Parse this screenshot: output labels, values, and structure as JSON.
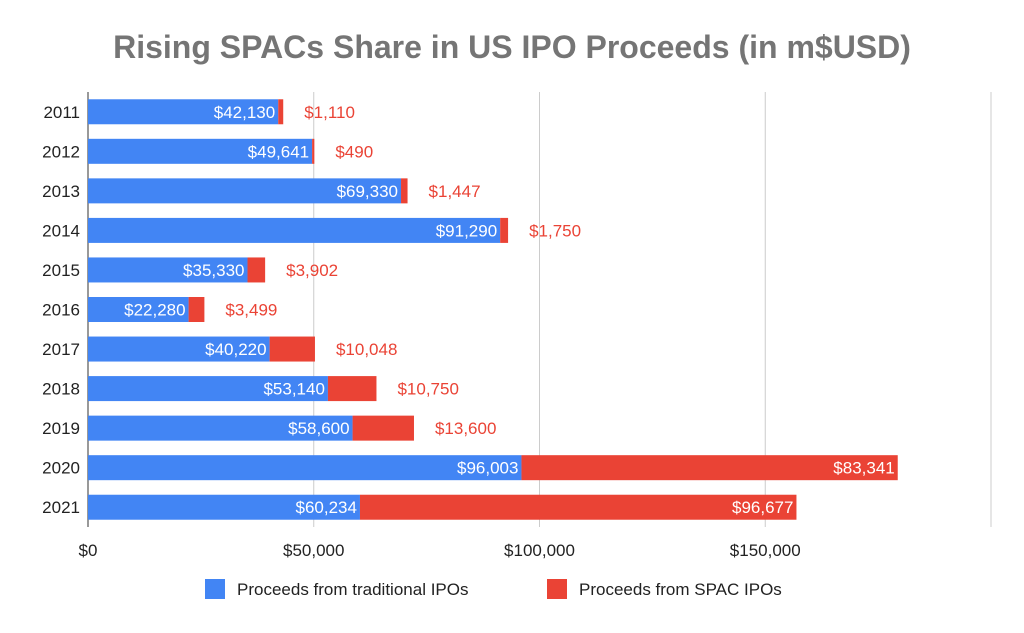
{
  "chart_data": {
    "type": "bar",
    "orientation": "horizontal",
    "stacked": true,
    "title": "Rising SPACs Share in US IPO Proceeds (in m$USD)",
    "categories": [
      "2011",
      "2012",
      "2013",
      "2014",
      "2015",
      "2016",
      "2017",
      "2018",
      "2019",
      "2020",
      "2021"
    ],
    "series": [
      {
        "name": "Proceeds from traditional IPOs",
        "color": "#4285F4",
        "values": [
          42130,
          49641,
          69330,
          91290,
          35330,
          22280,
          40220,
          53140,
          58600,
          96003,
          60234
        ],
        "labels": [
          "$42,130",
          "$49,641",
          "$69,330",
          "$91,290",
          "$35,330",
          "$22,280",
          "$40,220",
          "$53,140",
          "$58,600",
          "$96,003",
          "$60,234"
        ]
      },
      {
        "name": "Proceeds from SPAC IPOs",
        "color": "#EA4335",
        "values": [
          1110,
          490,
          1447,
          1750,
          3902,
          3499,
          10048,
          10750,
          13600,
          83341,
          96677
        ],
        "labels": [
          "$1,110",
          "$490",
          "$1,447",
          "$1,750",
          "$3,902",
          "$3,499",
          "$10,048",
          "$10,750",
          "$13,600",
          "$83,341",
          "$96,677"
        ]
      }
    ],
    "xlim": [
      0,
      200000
    ],
    "xticks": [
      0,
      50000,
      100000,
      150000
    ],
    "xtick_labels": [
      "$0",
      "$50,000",
      "$100,000",
      "$150,000"
    ],
    "grid": true,
    "legend_position": "bottom"
  }
}
